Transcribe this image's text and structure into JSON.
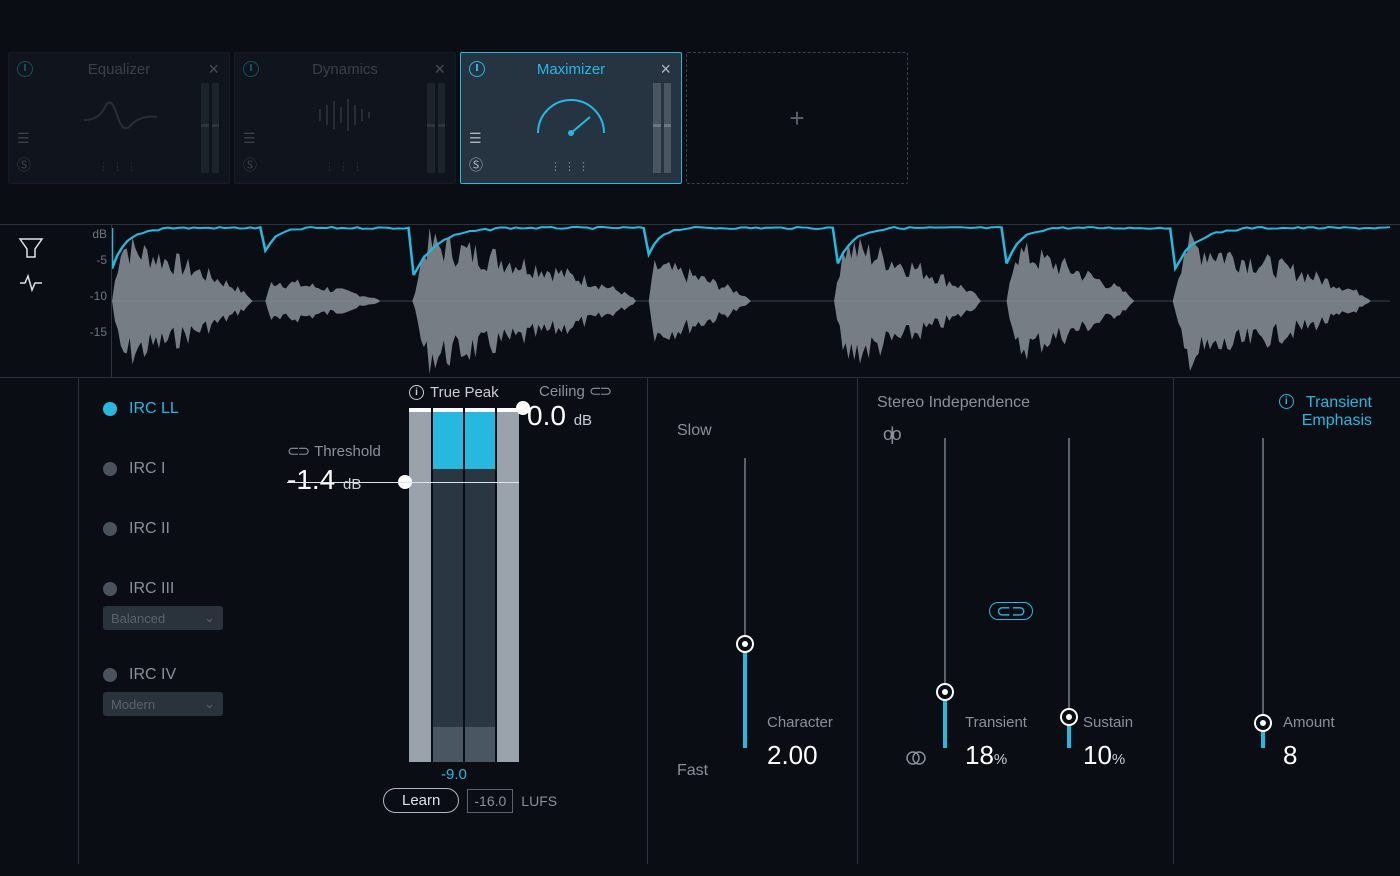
{
  "colors": {
    "bg": "#0a0e14",
    "panel": "#1a222c",
    "panel_active": "#263442",
    "border": "#2a323c",
    "accent": "#27b8e0",
    "text_dim": "#8a9099",
    "text_bright": "#ffffff",
    "meter_rail": "#9aa2ac",
    "meter_inner": "#2a3642"
  },
  "modules": {
    "equalizer": {
      "title": "Equalizer"
    },
    "dynamics": {
      "title": "Dynamics"
    },
    "maximizer": {
      "title": "Maximizer"
    }
  },
  "waveform": {
    "y_unit": "dB",
    "y_ticks": [
      "-5",
      "-10",
      "-15"
    ],
    "bursts": [
      {
        "start": 0.0,
        "end": 0.11,
        "amp": 0.95,
        "gr": 0.45
      },
      {
        "start": 0.12,
        "end": 0.21,
        "amp": 0.35,
        "gr": 0.25
      },
      {
        "start": 0.235,
        "end": 0.41,
        "amp": 0.98,
        "gr": 0.55
      },
      {
        "start": 0.42,
        "end": 0.5,
        "amp": 0.6,
        "gr": 0.3
      },
      {
        "start": 0.565,
        "end": 0.68,
        "amp": 0.95,
        "gr": 0.5
      },
      {
        "start": 0.7,
        "end": 0.8,
        "amp": 0.85,
        "gr": 0.4
      },
      {
        "start": 0.83,
        "end": 0.985,
        "amp": 0.95,
        "gr": 0.5
      }
    ]
  },
  "irc": {
    "items": [
      "IRC LL",
      "IRC I",
      "IRC II",
      "IRC III",
      "IRC IV"
    ],
    "active_index": 0,
    "irc3_preset": "Balanced",
    "irc4_preset": "Modern"
  },
  "true_peak": {
    "label": "True Peak",
    "ceiling_label": "Ceiling",
    "ceiling_value": "0.0",
    "ceiling_unit": "dB",
    "threshold_label": "Threshold",
    "threshold_value": "-1.4",
    "threshold_unit": "dB",
    "meter_level_db": "-9.0",
    "meter_fill_top_pct": 16,
    "meter_fill_bot_pct": 10,
    "threshold_pos_pct": 21,
    "ceiling_pos_pct": 0,
    "learn_label": "Learn",
    "lufs_value": "-16.0",
    "lufs_label": "LUFS"
  },
  "character": {
    "top_label": "Slow",
    "bottom_label": "Fast",
    "label": "Character",
    "value": "2.00",
    "pos_pct": 36
  },
  "stereo": {
    "section_label": "Stereo Independence",
    "linked": true,
    "transient": {
      "label": "Transient",
      "value": "18",
      "unit": "%",
      "pos_pct": 18
    },
    "sustain": {
      "label": "Sustain",
      "value": "10",
      "unit": "%",
      "pos_pct": 10
    }
  },
  "transient_emphasis": {
    "section_label_l1": "Transient",
    "section_label_l2": "Emphasis",
    "amount_label": "Amount",
    "value": "8",
    "pos_pct": 8
  }
}
